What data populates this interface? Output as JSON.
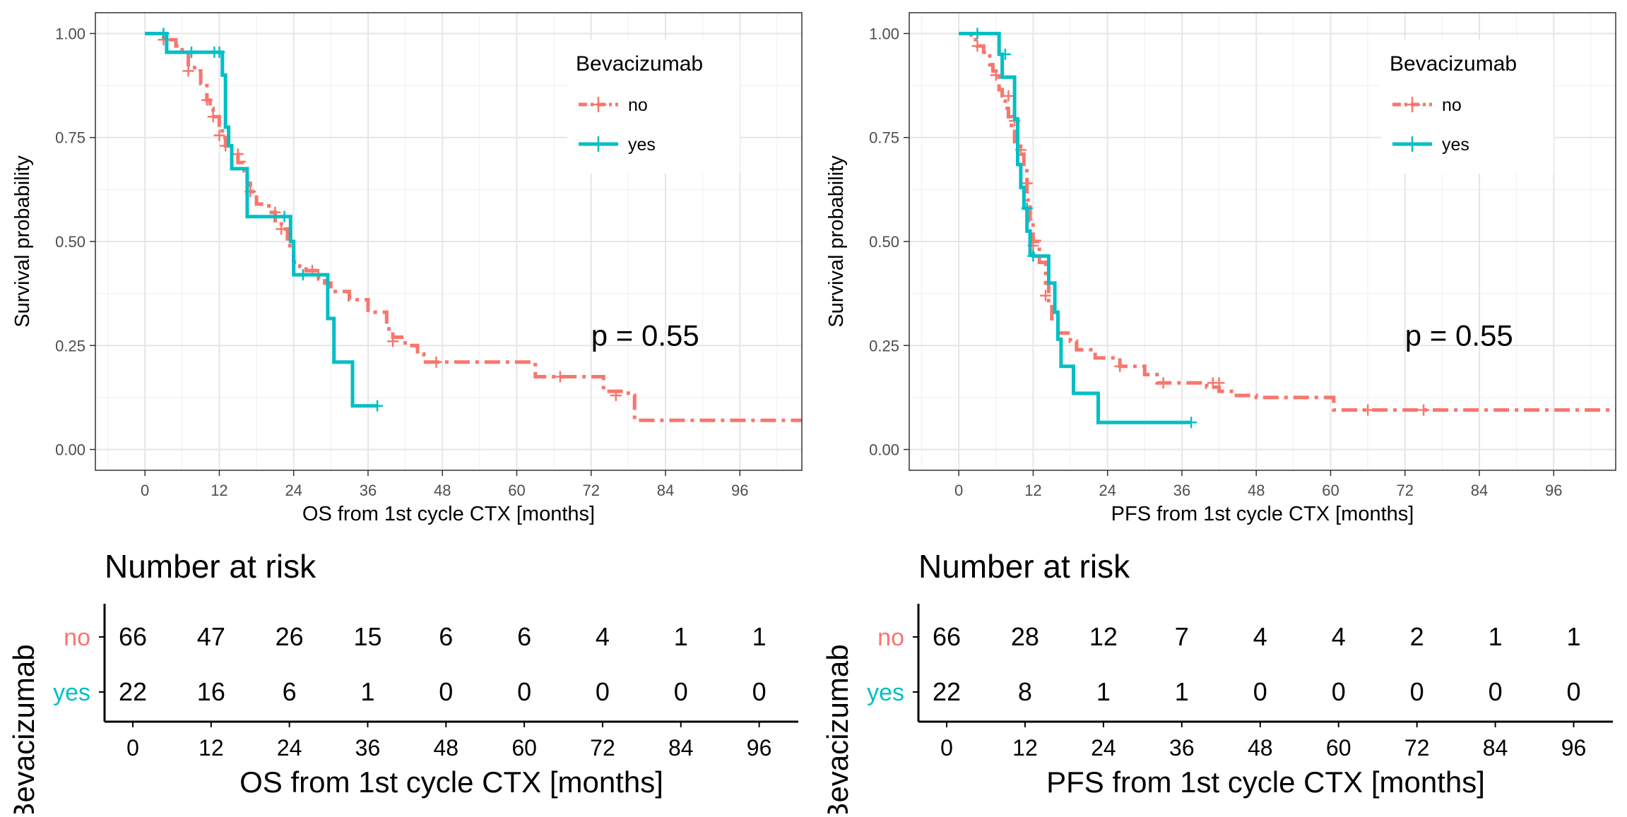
{
  "chart_data": [
    {
      "type": "line",
      "kind": "kaplan-meier",
      "xlabel": "OS from 1st cycle CTX [months]",
      "ylabel": "Survival probability",
      "xlim": [
        -8,
        106
      ],
      "ylim": [
        -0.05,
        1.05
      ],
      "xticks": [
        0,
        12,
        24,
        36,
        48,
        60,
        72,
        84,
        96
      ],
      "yticks": [
        0.0,
        0.25,
        0.5,
        0.75,
        1.0
      ],
      "ytick_labels": [
        "0.00",
        "0.25",
        "0.50",
        "0.75",
        "1.00"
      ],
      "grid": true,
      "pvalue_text": "p = 0.55",
      "pvalue_pos": {
        "x": 72,
        "y": 0.25
      },
      "legend": {
        "title": "Bevacizumab",
        "placement": "top-right",
        "entries": [
          "no",
          "yes"
        ]
      },
      "series": [
        {
          "name": "no",
          "color": "#F8766D",
          "dash": "dashdot",
          "steps": [
            [
              0,
              1.0
            ],
            [
              3,
              0.985
            ],
            [
              5,
              0.97
            ],
            [
              6,
              0.955
            ],
            [
              7,
              0.925
            ],
            [
              8,
              0.91
            ],
            [
              9,
              0.88
            ],
            [
              10,
              0.84
            ],
            [
              10.5,
              0.82
            ],
            [
              11,
              0.8
            ],
            [
              12,
              0.78
            ],
            [
              12.5,
              0.75
            ],
            [
              13,
              0.73
            ],
            [
              14,
              0.71
            ],
            [
              15,
              0.69
            ],
            [
              16,
              0.67
            ],
            [
              16.5,
              0.64
            ],
            [
              17,
              0.62
            ],
            [
              18,
              0.59
            ],
            [
              20,
              0.57
            ],
            [
              21,
              0.55
            ],
            [
              22,
              0.53
            ],
            [
              23,
              0.49
            ],
            [
              24,
              0.45
            ],
            [
              25,
              0.44
            ],
            [
              26,
              0.43
            ],
            [
              28,
              0.41
            ],
            [
              29,
              0.4
            ],
            [
              30,
              0.38
            ],
            [
              33,
              0.36
            ],
            [
              36,
              0.33
            ],
            [
              39,
              0.29
            ],
            [
              40,
              0.27
            ],
            [
              42,
              0.25
            ],
            [
              44,
              0.23
            ],
            [
              45,
              0.21
            ],
            [
              62,
              0.21
            ],
            [
              63,
              0.175
            ],
            [
              73,
              0.175
            ],
            [
              74,
              0.14
            ],
            [
              78,
              0.13
            ],
            [
              79,
              0.07
            ],
            [
              106,
              0.07
            ]
          ],
          "censors": [
            [
              3,
              0.985
            ],
            [
              7,
              0.91
            ],
            [
              10,
              0.84
            ],
            [
              11,
              0.8
            ],
            [
              12,
              0.755
            ],
            [
              13,
              0.73
            ],
            [
              15,
              0.71
            ],
            [
              17,
              0.62
            ],
            [
              21,
              0.57
            ],
            [
              22,
              0.53
            ],
            [
              27,
              0.43
            ],
            [
              28,
              0.42
            ],
            [
              40,
              0.26
            ],
            [
              47,
              0.21
            ],
            [
              67,
              0.175
            ],
            [
              76,
              0.13
            ]
          ]
        },
        {
          "name": "yes",
          "color": "#00BFC4",
          "dash": "solid",
          "steps": [
            [
              0,
              1.0
            ],
            [
              3,
              1.0
            ],
            [
              3.5,
              0.955
            ],
            [
              12,
              0.955
            ],
            [
              12.5,
              0.9
            ],
            [
              13,
              0.775
            ],
            [
              13.5,
              0.73
            ],
            [
              14,
              0.675
            ],
            [
              16,
              0.675
            ],
            [
              16.5,
              0.56
            ],
            [
              23,
              0.56
            ],
            [
              23.5,
              0.5
            ],
            [
              24,
              0.42
            ],
            [
              29,
              0.42
            ],
            [
              29.5,
              0.315
            ],
            [
              30.5,
              0.21
            ],
            [
              33,
              0.21
            ],
            [
              33.5,
              0.105
            ],
            [
              37.5,
              0.105
            ]
          ],
          "censors": [
            [
              3,
              1.0
            ],
            [
              7.5,
              0.955
            ],
            [
              11.2,
              0.955
            ],
            [
              12,
              0.955
            ],
            [
              22.5,
              0.56
            ],
            [
              25.5,
              0.42
            ],
            [
              37.5,
              0.105
            ]
          ]
        }
      ],
      "risk_table": {
        "title": "Number at risk",
        "ylabel": "Bevacizumab",
        "xlabel": "OS from 1st cycle CTX [months]",
        "times": [
          0,
          12,
          24,
          36,
          48,
          60,
          72,
          84,
          96
        ],
        "time_labels": [
          "0",
          "12",
          "24",
          "36",
          "48",
          "60",
          "72",
          "84",
          "96"
        ],
        "rows": [
          {
            "label": "no",
            "color": "#F8766D",
            "values": [
              "66",
              "47",
              "26",
              "15",
              "6",
              "6",
              "4",
              "1",
              "1"
            ]
          },
          {
            "label": "yes",
            "color": "#00BFC4",
            "values": [
              "22",
              "16",
              "6",
              "1",
              "0",
              "0",
              "0",
              "0",
              "0"
            ]
          }
        ]
      }
    },
    {
      "type": "line",
      "kind": "kaplan-meier",
      "xlabel": "PFS from 1st cycle CTX [months]",
      "ylabel": "Survival probability",
      "xlim": [
        -8,
        106
      ],
      "ylim": [
        -0.05,
        1.05
      ],
      "xticks": [
        0,
        12,
        24,
        36,
        48,
        60,
        72,
        84,
        96
      ],
      "yticks": [
        0.0,
        0.25,
        0.5,
        0.75,
        1.0
      ],
      "ytick_labels": [
        "0.00",
        "0.25",
        "0.50",
        "0.75",
        "1.00"
      ],
      "grid": true,
      "pvalue_text": "p = 0.55",
      "pvalue_pos": {
        "x": 72,
        "y": 0.25
      },
      "legend": {
        "title": "Bevacizumab",
        "placement": "top-right",
        "entries": [
          "no",
          "yes"
        ]
      },
      "series": [
        {
          "name": "no",
          "color": "#F8766D",
          "dash": "dashdot",
          "steps": [
            [
              0,
              1.0
            ],
            [
              2,
              0.985
            ],
            [
              3,
              0.97
            ],
            [
              4,
              0.955
            ],
            [
              5,
              0.925
            ],
            [
              5.5,
              0.91
            ],
            [
              6,
              0.895
            ],
            [
              6.5,
              0.865
            ],
            [
              7,
              0.85
            ],
            [
              7.5,
              0.82
            ],
            [
              8,
              0.8
            ],
            [
              8.5,
              0.77
            ],
            [
              9,
              0.74
            ],
            [
              10,
              0.71
            ],
            [
              10.5,
              0.67
            ],
            [
              11,
              0.6
            ],
            [
              11.5,
              0.55
            ],
            [
              12,
              0.5
            ],
            [
              13,
              0.45
            ],
            [
              14,
              0.4
            ],
            [
              14.5,
              0.35
            ],
            [
              15,
              0.31
            ],
            [
              16,
              0.28
            ],
            [
              18,
              0.26
            ],
            [
              19,
              0.24
            ],
            [
              22,
              0.22
            ],
            [
              26,
              0.2
            ],
            [
              30,
              0.18
            ],
            [
              32,
              0.16
            ],
            [
              36,
              0.16
            ],
            [
              40,
              0.15
            ],
            [
              42,
              0.14
            ],
            [
              44,
              0.13
            ],
            [
              48,
              0.125
            ],
            [
              60,
              0.125
            ],
            [
              60.5,
              0.095
            ],
            [
              106,
              0.095
            ]
          ],
          "censors": [
            [
              3,
              0.97
            ],
            [
              6,
              0.9
            ],
            [
              8,
              0.85
            ],
            [
              9,
              0.79
            ],
            [
              10,
              0.72
            ],
            [
              11,
              0.64
            ],
            [
              12,
              0.49
            ],
            [
              14,
              0.37
            ],
            [
              26,
              0.2
            ],
            [
              33,
              0.16
            ],
            [
              41,
              0.16
            ],
            [
              42,
              0.16
            ],
            [
              66,
              0.095
            ],
            [
              75,
              0.095
            ]
          ]
        },
        {
          "name": "yes",
          "color": "#00BFC4",
          "dash": "solid",
          "steps": [
            [
              0,
              1.0
            ],
            [
              6,
              1.0
            ],
            [
              6.5,
              0.95
            ],
            [
              7,
              0.895
            ],
            [
              8.5,
              0.895
            ],
            [
              9,
              0.795
            ],
            [
              9.5,
              0.685
            ],
            [
              10,
              0.63
            ],
            [
              10.5,
              0.58
            ],
            [
              11,
              0.525
            ],
            [
              11.5,
              0.47
            ],
            [
              12,
              0.465
            ],
            [
              14,
              0.465
            ],
            [
              14.5,
              0.4
            ],
            [
              15.5,
              0.33
            ],
            [
              16,
              0.265
            ],
            [
              16.5,
              0.2
            ],
            [
              18,
              0.2
            ],
            [
              18.5,
              0.135
            ],
            [
              22,
              0.135
            ],
            [
              22.5,
              0.065
            ],
            [
              37.5,
              0.065
            ]
          ],
          "censors": [
            [
              3,
              1.0
            ],
            [
              7.5,
              0.95
            ],
            [
              11,
              0.58
            ],
            [
              12,
              0.465
            ],
            [
              37.5,
              0.065
            ]
          ]
        }
      ],
      "risk_table": {
        "title": "Number at risk",
        "ylabel": "Bevacizumab",
        "xlabel": "PFS from 1st cycle CTX [months]",
        "times": [
          0,
          12,
          24,
          36,
          48,
          60,
          72,
          84,
          96
        ],
        "time_labels": [
          "0",
          "12",
          "24",
          "36",
          "48",
          "60",
          "72",
          "84",
          "96"
        ],
        "rows": [
          {
            "label": "no",
            "color": "#F8766D",
            "values": [
              "66",
              "28",
              "12",
              "7",
              "4",
              "4",
              "2",
              "1",
              "1"
            ]
          },
          {
            "label": "yes",
            "color": "#00BFC4",
            "values": [
              "22",
              "8",
              "1",
              "1",
              "0",
              "0",
              "0",
              "0",
              "0"
            ]
          }
        ]
      }
    }
  ]
}
